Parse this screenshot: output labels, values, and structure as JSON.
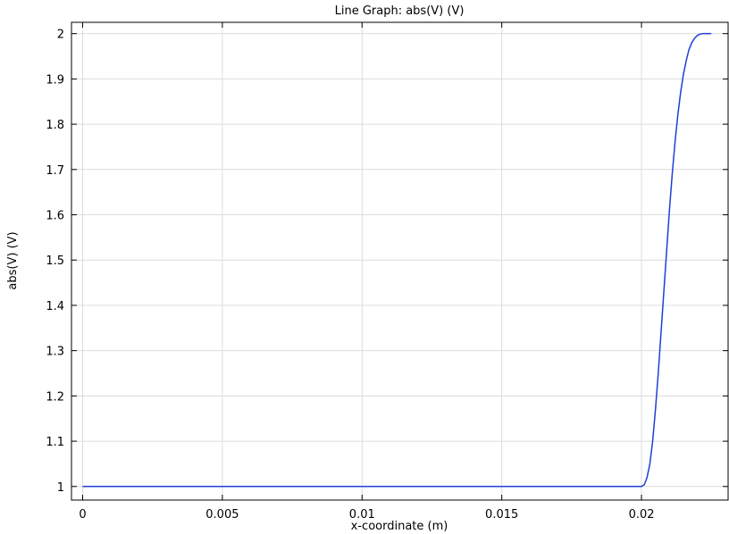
{
  "chart_data": {
    "type": "line",
    "title": "Line Graph: abs(V) (V)",
    "xlabel": "x-coordinate (m)",
    "ylabel": "abs(V) (V)",
    "xlim": [
      -0.0004,
      0.0231
    ],
    "ylim": [
      0.97,
      2.025
    ],
    "x_ticks": [
      0,
      0.005,
      0.01,
      0.015,
      0.02
    ],
    "x_tick_labels": [
      "0",
      "0.005",
      "0.01",
      "0.015",
      "0.02"
    ],
    "y_ticks": [
      1,
      1.1,
      1.2,
      1.3,
      1.4,
      1.5,
      1.6,
      1.7,
      1.8,
      1.9,
      2
    ],
    "y_tick_labels": [
      "1",
      "1.1",
      "1.2",
      "1.3",
      "1.4",
      "1.5",
      "1.6",
      "1.7",
      "1.8",
      "1.9",
      "2"
    ],
    "grid": true,
    "series": [
      {
        "color": "#1f3fd6",
        "x": [
          0,
          0.005,
          0.01,
          0.015,
          0.02,
          0.0201,
          0.0202,
          0.0203,
          0.0204,
          0.0205,
          0.0206,
          0.0207,
          0.0208,
          0.0209,
          0.021,
          0.0211,
          0.0212,
          0.0213,
          0.0214,
          0.0215,
          0.0216,
          0.0217,
          0.0218,
          0.0219,
          0.022,
          0.0221,
          0.0222,
          0.0223,
          0.0224,
          0.0225
        ],
        "y": [
          1,
          1,
          1,
          1,
          1,
          1.004,
          1.02,
          1.05,
          1.1,
          1.17,
          1.25,
          1.34,
          1.43,
          1.52,
          1.61,
          1.69,
          1.76,
          1.82,
          1.87,
          1.91,
          1.94,
          1.965,
          1.98,
          1.99,
          1.996,
          1.999,
          2.0,
          2.0,
          2.0,
          2.0
        ]
      }
    ]
  }
}
